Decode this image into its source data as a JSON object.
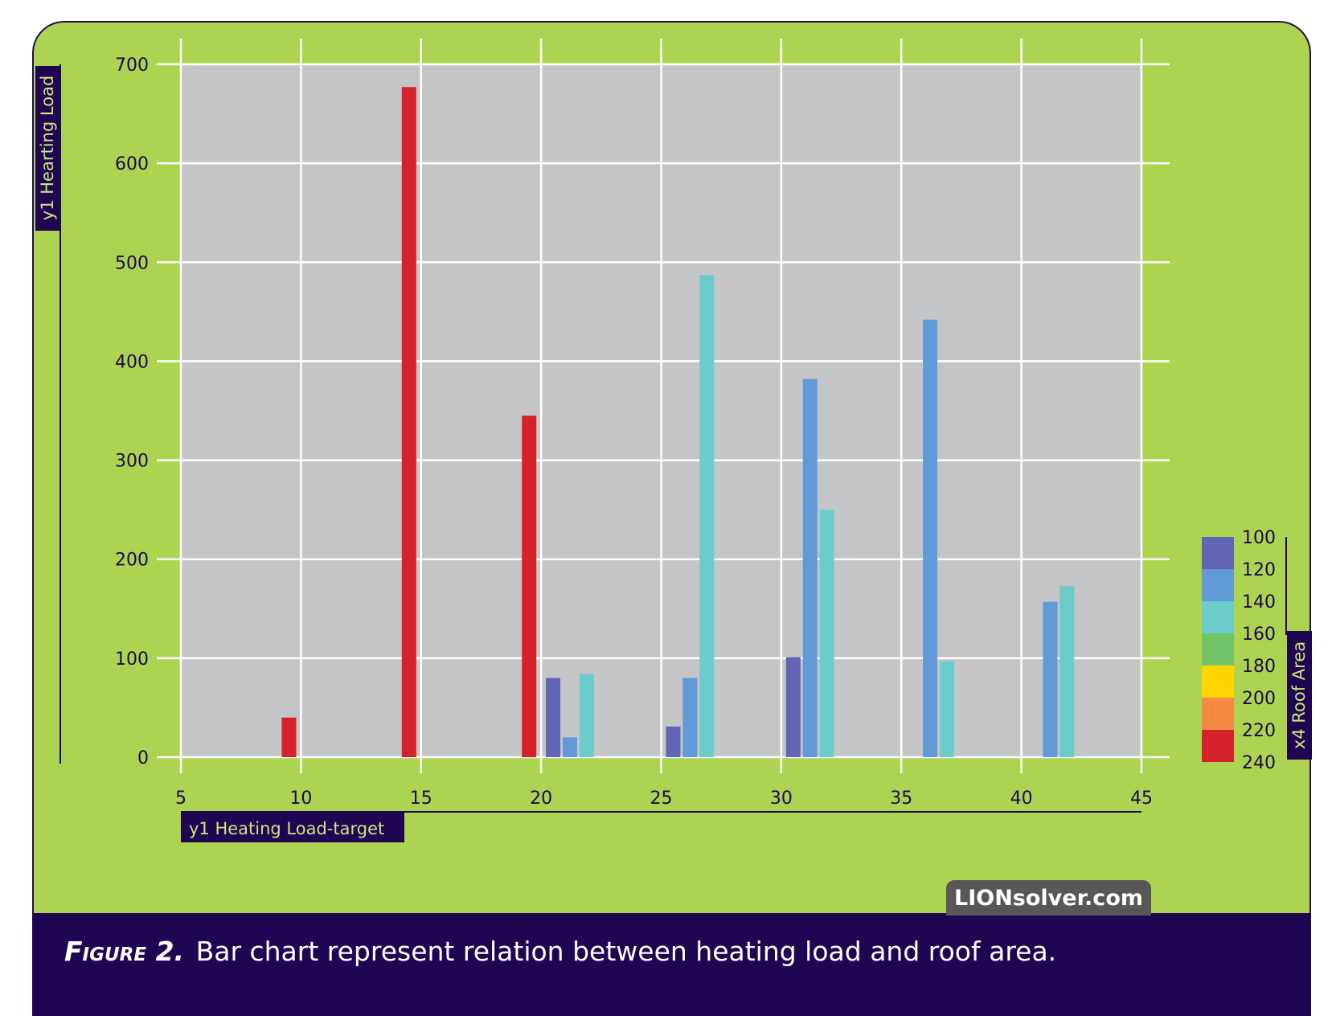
{
  "chart_data": {
    "type": "bar",
    "ylabel": "y1 Hearting Load",
    "xlabel": "y1 Heating Load-target",
    "xlim": [
      5,
      45
    ],
    "ylim": [
      0,
      700
    ],
    "xticks": [
      5,
      10,
      15,
      20,
      25,
      30,
      35,
      40,
      45
    ],
    "yticks": [
      0,
      100,
      200,
      300,
      400,
      500,
      600,
      700
    ],
    "grid": true,
    "legend": {
      "title": "x4 Roof Area",
      "position": "right",
      "entries": [
        {
          "label": "100",
          "color": "#6464b4"
        },
        {
          "label": "120",
          "color": "#6299d7"
        },
        {
          "label": "140",
          "color": "#6ccbcb"
        },
        {
          "label": "160",
          "color": "#72c268"
        },
        {
          "label": "180",
          "color": "#ffd500"
        },
        {
          "label": "200",
          "color": "#f58a45"
        },
        {
          "label": "220",
          "color": "#d4212b"
        },
        {
          "label": "240",
          "color": ""
        }
      ]
    },
    "bars": [
      {
        "x": 9.5,
        "y": 40,
        "roof_area": "220"
      },
      {
        "x": 14.5,
        "y": 677,
        "roof_area": "220"
      },
      {
        "x": 19.5,
        "y": 345,
        "roof_area": "220"
      },
      {
        "x": 20.5,
        "y": 80,
        "roof_area": "100"
      },
      {
        "x": 21.2,
        "y": 20,
        "roof_area": "120"
      },
      {
        "x": 21.9,
        "y": 84,
        "roof_area": "140"
      },
      {
        "x": 25.5,
        "y": 31,
        "roof_area": "100"
      },
      {
        "x": 26.2,
        "y": 80,
        "roof_area": "120"
      },
      {
        "x": 26.9,
        "y": 487,
        "roof_area": "140"
      },
      {
        "x": 30.5,
        "y": 101,
        "roof_area": "100"
      },
      {
        "x": 31.2,
        "y": 382,
        "roof_area": "120"
      },
      {
        "x": 31.9,
        "y": 250,
        "roof_area": "140"
      },
      {
        "x": 36.2,
        "y": 442,
        "roof_area": "120"
      },
      {
        "x": 36.9,
        "y": 97,
        "roof_area": "140"
      },
      {
        "x": 41.2,
        "y": 157,
        "roof_area": "120"
      },
      {
        "x": 41.9,
        "y": 173,
        "roof_area": "140"
      }
    ]
  },
  "caption": {
    "label": "Figure 2.",
    "text": "Bar chart represent relation between heating load and roof area."
  },
  "brand": "LIONsolver.com",
  "colors": {
    "background": "#add451",
    "plot_area": "#c4c5c7",
    "caption_band": "#1f0652",
    "grid": "#ffffff"
  }
}
